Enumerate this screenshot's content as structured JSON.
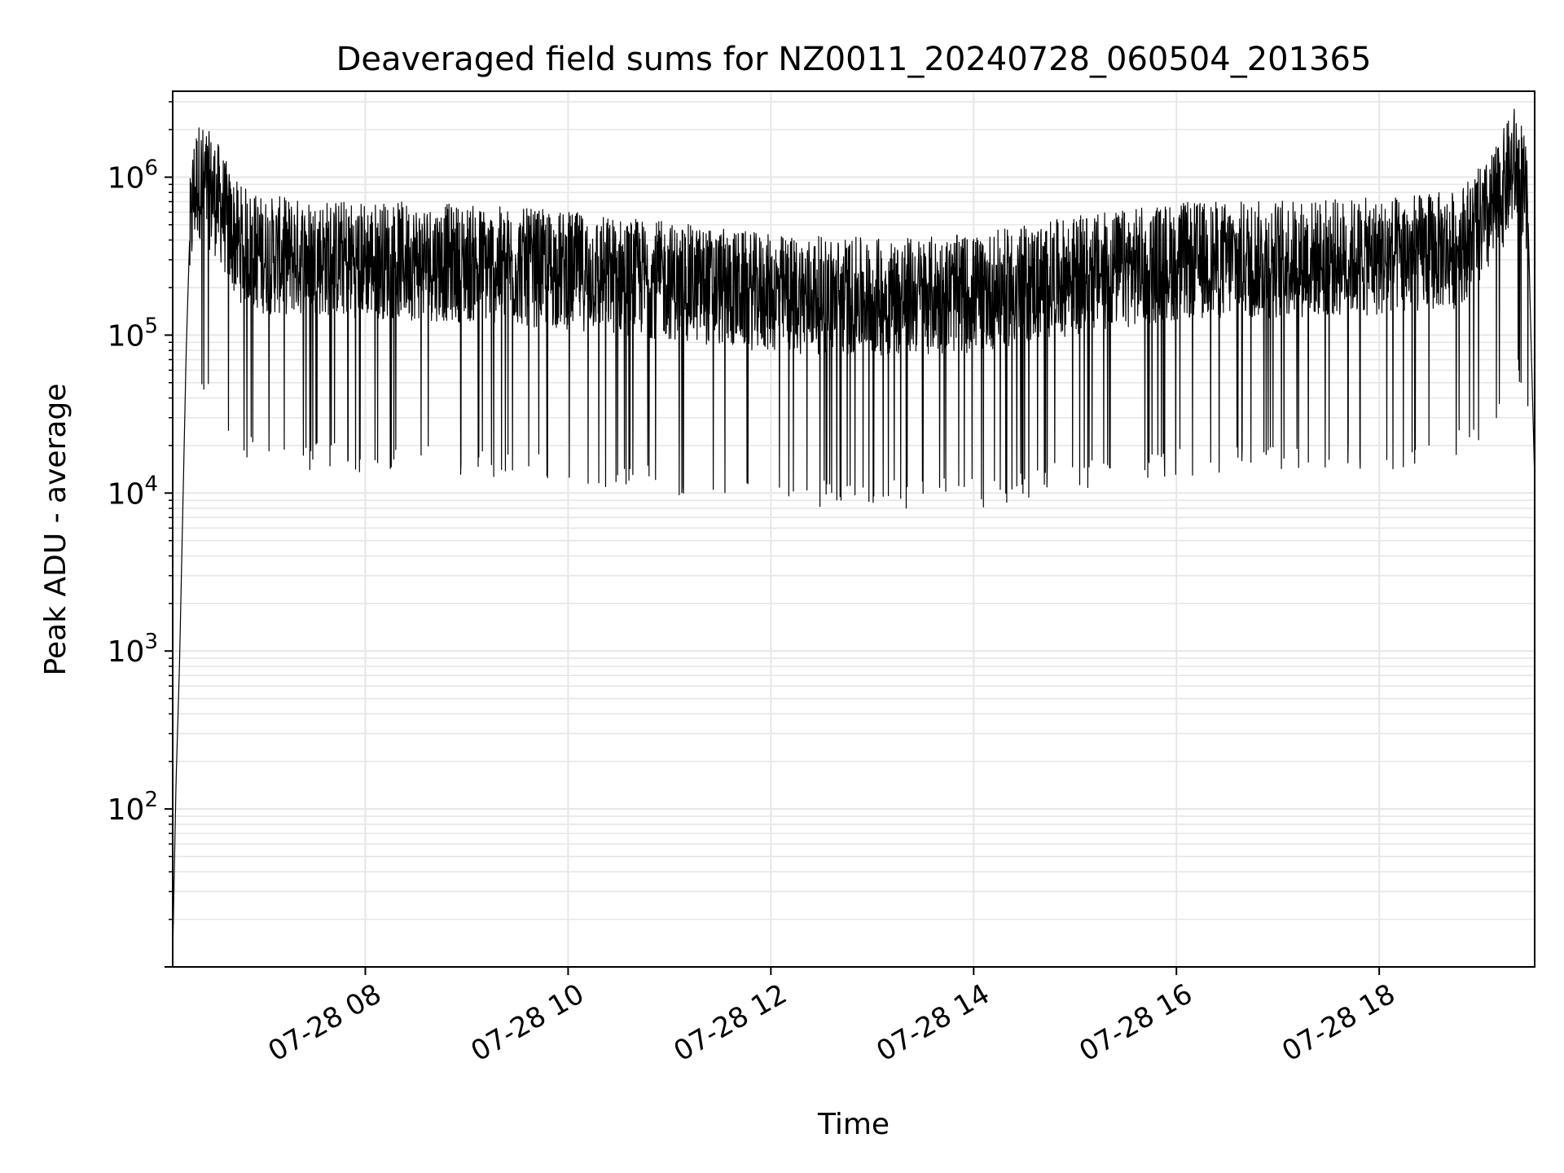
{
  "chart_data": {
    "type": "line",
    "title": "Deaveraged field sums for NZ0011_20240728_060504_201365",
    "xlabel": "Time",
    "ylabel": "Peak ADU - average",
    "yscale": "log",
    "xlim": [
      "2024-07-28 06:06",
      "2024-07-28 19:32"
    ],
    "ylim": [
      10,
      3500000
    ],
    "x_ticks": [
      {
        "label": "07-28 08",
        "time": "2024-07-28 08:00"
      },
      {
        "label": "07-28 10",
        "time": "2024-07-28 10:00"
      },
      {
        "label": "07-28 12",
        "time": "2024-07-28 12:00"
      },
      {
        "label": "07-28 14",
        "time": "2024-07-28 14:00"
      },
      {
        "label": "07-28 16",
        "time": "2024-07-28 16:00"
      },
      {
        "label": "07-28 18",
        "time": "2024-07-28 18:00"
      }
    ],
    "y_ticks": [
      {
        "base": "10",
        "exp": "2",
        "value": 100
      },
      {
        "base": "10",
        "exp": "3",
        "value": 1000
      },
      {
        "base": "10",
        "exp": "4",
        "value": 10000
      },
      {
        "base": "10",
        "exp": "5",
        "value": 100000
      },
      {
        "base": "10",
        "exp": "6",
        "value": 1000000
      }
    ],
    "grid": true,
    "line_color": "#000000",
    "grid_color": "#e6e6e6",
    "series": [
      {
        "x": [
          "2024-07-28 06:06",
          "2024-07-28 06:08",
          "2024-07-28 06:10",
          "2024-07-28 06:12",
          "2024-07-28 06:14",
          "2024-07-28 06:16",
          "2024-07-28 06:18",
          "2024-07-28 06:20",
          "2024-07-28 06:22",
          "2024-07-28 06:25",
          "2024-07-28 06:30",
          "2024-07-28 06:35",
          "2024-07-28 06:40",
          "2024-07-28 06:45",
          "2024-07-28 07:00",
          "2024-07-28 08:00",
          "2024-07-28 09:00",
          "2024-07-28 10:00",
          "2024-07-28 11:00",
          "2024-07-28 12:00",
          "2024-07-28 13:00",
          "2024-07-28 14:00",
          "2024-07-28 15:00",
          "2024-07-28 16:00",
          "2024-07-28 17:00",
          "2024-07-28 18:00",
          "2024-07-28 18:45",
          "2024-07-28 19:05",
          "2024-07-28 19:15",
          "2024-07-28 19:20",
          "2024-07-28 19:24",
          "2024-07-28 19:28",
          "2024-07-28 19:30",
          "2024-07-28 19:32"
        ],
        "y": [
          12,
          150,
          800,
          8000,
          80000,
          400000,
          800000,
          1000000,
          1050000,
          950000,
          850000,
          700000,
          500000,
          420000,
          350000,
          330000,
          310000,
          280000,
          240000,
          200000,
          190000,
          200000,
          260000,
          320000,
          330000,
          340000,
          380000,
          600000,
          1000000,
          1300000,
          1100000,
          600000,
          80000,
          12000
        ]
      }
    ]
  }
}
